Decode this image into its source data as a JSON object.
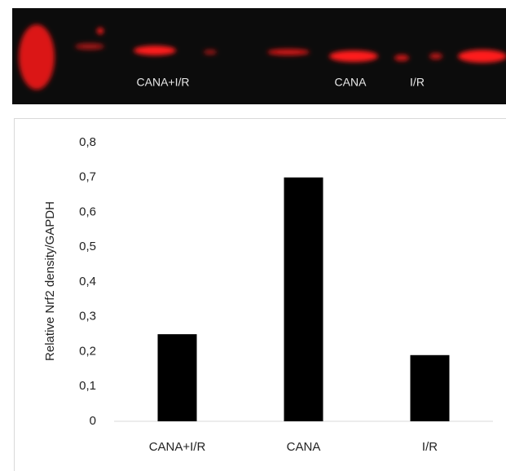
{
  "blot": {
    "labels": [
      "CANA+I/R",
      "CANA",
      "I/R"
    ]
  },
  "chart_data": {
    "type": "bar",
    "y_label": "Relative Nrf2 density/GAPDH",
    "categories": [
      "CANA+I/R",
      "CANA",
      "I/R"
    ],
    "values": [
      0.25,
      0.7,
      0.19
    ],
    "color": "#000000",
    "ylim": [
      0,
      0.8
    ],
    "yticks": [
      0,
      {
        "value": 0.1,
        "label": "0,1"
      },
      {
        "value": 0.2,
        "label": "0,2"
      },
      {
        "value": 0.3,
        "label": "0,3"
      },
      {
        "value": 0.4,
        "label": "0,4"
      },
      {
        "value": 0.5,
        "label": "0,5"
      },
      {
        "value": 0.6,
        "label": "0,6"
      },
      {
        "value": 0.7,
        "label": "0,7"
      },
      {
        "value": 0.8,
        "label": "0,8"
      }
    ],
    "grid": false
  }
}
